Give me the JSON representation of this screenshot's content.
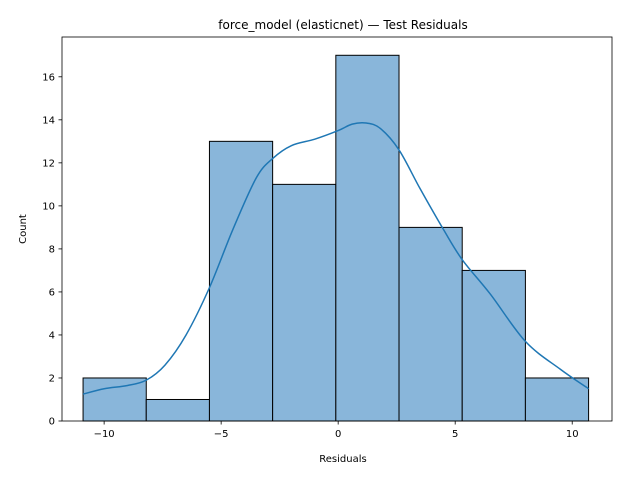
{
  "chart_data": {
    "type": "bar",
    "subtype": "histogram",
    "title": "force_model (elasticnet) — Test Residuals",
    "xlabel": "Residuals",
    "ylabel": "Count",
    "xlim": [
      -11.8,
      11.7
    ],
    "ylim": [
      0,
      17.85
    ],
    "xticks": [
      -10,
      -5,
      0,
      5,
      10
    ],
    "yticks": [
      0,
      2,
      4,
      6,
      8,
      10,
      12,
      14,
      16
    ],
    "bins": [
      {
        "x0": -10.9,
        "x1": -8.2,
        "count": 2
      },
      {
        "x0": -8.2,
        "x1": -5.5,
        "count": 1
      },
      {
        "x0": -5.5,
        "x1": -2.8,
        "count": 13
      },
      {
        "x0": -2.8,
        "x1": -0.1,
        "count": 11
      },
      {
        "x0": -0.1,
        "x1": 2.6,
        "count": 17
      },
      {
        "x0": 2.6,
        "x1": 5.3,
        "count": 9
      },
      {
        "x0": 5.3,
        "x1": 8.0,
        "count": 7
      },
      {
        "x0": 8.0,
        "x1": 10.7,
        "count": 2
      }
    ],
    "kde": {
      "x": [
        -10.9,
        -10.0,
        -9.0,
        -8.2,
        -7.4,
        -6.5,
        -5.5,
        -4.5,
        -3.5,
        -2.8,
        -2.0,
        -1.0,
        0.0,
        0.6,
        1.2,
        1.8,
        2.6,
        3.5,
        4.5,
        5.3,
        6.5,
        8.0,
        9.5,
        10.7
      ],
      "y": [
        1.25,
        1.5,
        1.65,
        1.9,
        2.6,
        4.0,
        6.2,
        8.9,
        11.3,
        12.2,
        12.8,
        13.1,
        13.5,
        13.8,
        13.85,
        13.6,
        12.6,
        10.8,
        8.9,
        7.5,
        5.9,
        3.7,
        2.4,
        1.5
      ]
    },
    "colors": {
      "bar_fill": "#89b6da",
      "bar_edge": "#000000",
      "kde_line": "#1f77b4"
    },
    "grid": false,
    "legend": "none"
  }
}
